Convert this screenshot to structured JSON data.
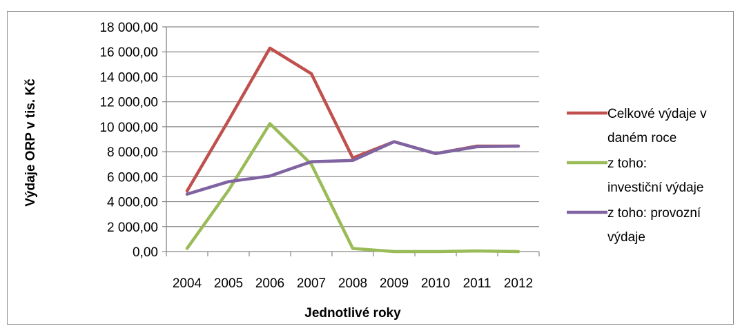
{
  "chart_data": {
    "type": "line",
    "title": "",
    "xlabel": "Jednotlivé roky",
    "ylabel": "Výdaje ORP v tis. Kč",
    "categories": [
      "2004",
      "2005",
      "2006",
      "2007",
      "2008",
      "2009",
      "2010",
      "2011",
      "2012"
    ],
    "ylim": [
      0,
      18000
    ],
    "yticks": [
      0,
      2000,
      4000,
      6000,
      8000,
      10000,
      12000,
      14000,
      16000,
      18000
    ],
    "ytick_labels": [
      "0,00",
      "2 000,00",
      "4 000,00",
      "6 000,00",
      "8 000,00",
      "10 000,00",
      "12 000,00",
      "14 000,00",
      "16 000,00",
      "18 000,00"
    ],
    "grid": true,
    "legend_position": "right",
    "series": [
      {
        "name": "Celkové výdaje v daném roce",
        "legend_lines": [
          "Celkové výdaje v",
          "daném roce"
        ],
        "color": "#c0504d",
        "values": [
          4850,
          10500,
          16300,
          14250,
          7500,
          8800,
          7850,
          8450,
          8450
        ]
      },
      {
        "name": "z toho: investiční výdaje",
        "legend_lines": [
          "z toho:",
          "investiční výdaje"
        ],
        "color": "#9bbb59",
        "values": [
          250,
          4900,
          10250,
          7000,
          250,
          0,
          0,
          50,
          0
        ]
      },
      {
        "name": "z toho: provozní výdaje",
        "legend_lines": [
          "z toho:  provozní",
          "výdaje"
        ],
        "color": "#8064a2",
        "values": [
          4600,
          5600,
          6050,
          7200,
          7300,
          8800,
          7850,
          8400,
          8450
        ]
      }
    ]
  }
}
